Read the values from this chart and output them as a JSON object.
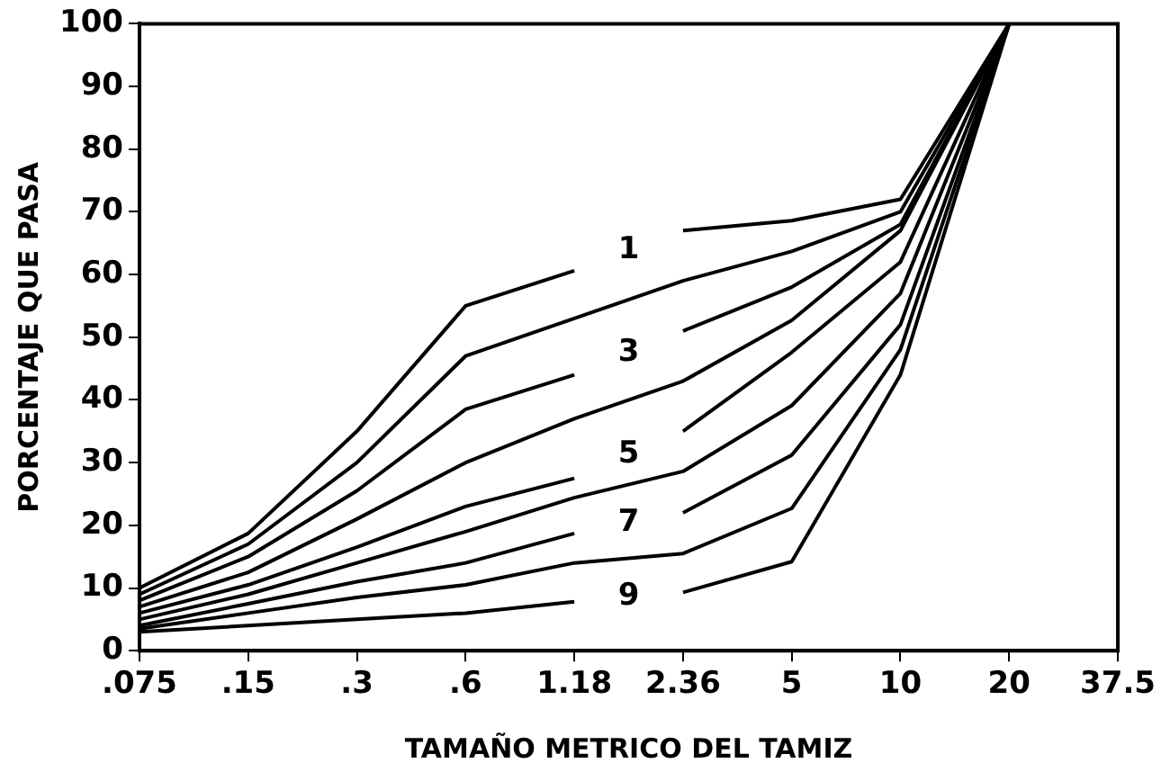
{
  "chart_data": {
    "type": "line",
    "xlabel": "TAMAÑO METRICO DEL TAMIZ",
    "ylabel": "PORCENTAJE QUE PASA",
    "categories": [
      ".075",
      ".15",
      ".3",
      ".6",
      "1.18",
      "2.36",
      "5",
      "10",
      "20",
      "37.5"
    ],
    "ylim": [
      0,
      100
    ],
    "yticks": [
      0,
      10,
      20,
      30,
      40,
      50,
      60,
      70,
      80,
      90,
      100
    ],
    "grid": false,
    "legend": false,
    "marker": "none",
    "line_style": "solid",
    "series": [
      {
        "name": "1",
        "color": "#000000",
        "values": [
          10,
          18.7,
          35,
          55,
          60.6,
          67,
          68.6,
          72,
          100,
          null
        ]
      },
      {
        "color": "#000000",
        "values": [
          9,
          17,
          30,
          47,
          53,
          59,
          63.7,
          70,
          100,
          null
        ]
      },
      {
        "name": "3",
        "color": "#000000",
        "values": [
          8,
          15,
          25.5,
          38.5,
          44,
          51,
          58,
          68,
          100,
          null
        ]
      },
      {
        "color": "#000000",
        "values": [
          7,
          12.5,
          21,
          30,
          37,
          43,
          52.7,
          67,
          100,
          null
        ]
      },
      {
        "name": "5",
        "color": "#000000",
        "values": [
          6,
          10.5,
          16.5,
          23,
          27.5,
          35,
          47.6,
          62,
          100,
          null
        ]
      },
      {
        "color": "#000000",
        "values": [
          5,
          9,
          14,
          19,
          24.4,
          28.6,
          39.1,
          57,
          100,
          null
        ]
      },
      {
        "name": "7",
        "color": "#000000",
        "values": [
          4,
          7.5,
          11,
          14,
          18.7,
          22,
          31.2,
          52,
          100,
          null
        ]
      },
      {
        "color": "#000000",
        "values": [
          3.5,
          6,
          8.5,
          10.5,
          14,
          15.5,
          22.7,
          48,
          100,
          null
        ]
      },
      {
        "name": "9",
        "color": "#000000",
        "values": [
          3,
          4,
          5,
          6,
          7.8,
          9.3,
          14.2,
          44,
          100,
          null
        ]
      }
    ]
  }
}
